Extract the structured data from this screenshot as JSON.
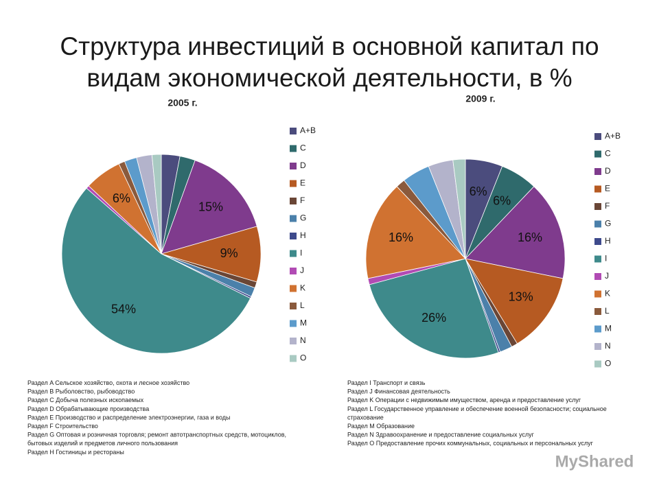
{
  "title_lines": [
    "Структура инвестиций в основной капитал по",
    "видам экономической деятельности, в %"
  ],
  "chart_data": [
    {
      "type": "pie",
      "title": "2005 г.",
      "categories": [
        "A+B",
        "C",
        "D",
        "E",
        "F",
        "G",
        "H",
        "I",
        "J",
        "K",
        "L",
        "M",
        "N",
        "O"
      ],
      "values": [
        3,
        2.5,
        15,
        9,
        1,
        1.5,
        0.3,
        54,
        0.5,
        6,
        1,
        2,
        2.5,
        1.5
      ],
      "value_labels": [
        null,
        null,
        "15%",
        "9%",
        null,
        null,
        null,
        "54%",
        null,
        "6%",
        null,
        null,
        null,
        null
      ],
      "colors": [
        "#4b4c7d",
        "#2f6a6c",
        "#7f3b8d",
        "#b65a22",
        "#6a4636",
        "#4b80aa",
        "#3e4a8c",
        "#3e8a8b",
        "#b14bb4",
        "#d07231",
        "#8a5a3c",
        "#5c9bcb",
        "#b3b3cb",
        "#a9cac2"
      ]
    },
    {
      "type": "pie",
      "title": "2009 г.",
      "categories": [
        "A+B",
        "C",
        "D",
        "E",
        "F",
        "G",
        "H",
        "I",
        "J",
        "K",
        "L",
        "M",
        "N",
        "O"
      ],
      "values": [
        6,
        6,
        16,
        13,
        1,
        2,
        0.3,
        26,
        1,
        16,
        1.5,
        4.5,
        4,
        2
      ],
      "value_labels": [
        "6%",
        "6%",
        "16%",
        "13%",
        null,
        null,
        null,
        "26%",
        null,
        "16%",
        null,
        null,
        null,
        null
      ],
      "colors": [
        "#4b4c7d",
        "#2f6a6c",
        "#7f3b8d",
        "#b65a22",
        "#6a4636",
        "#4b80aa",
        "#3e4a8c",
        "#3e8a8b",
        "#b14bb4",
        "#d07231",
        "#8a5a3c",
        "#5c9bcb",
        "#b3b3cb",
        "#a9cac2"
      ]
    }
  ],
  "notes_left": [
    "Раздел A Сельское хозяйство, охота и лесное хозяйство",
    "Раздел B Рыболовство, рыбоводство",
    "Раздел C Добыча полезных ископаемых",
    "Раздел D Обрабатывающие производства",
    "Раздел E Производство и распределение электроэнергии, газа и воды",
    "Раздел F Строительство",
    "Раздел G Оптовая и розничная торговля; ремонт автотранспортных средств, мотоциклов,",
    "бытовых изделий и предметов личного пользования",
    "Раздел H Гостиницы и рестораны"
  ],
  "notes_right": [
    "Раздел I Транспорт и связь",
    "Раздел J Финансовая деятельность",
    "Раздел K Операции с недвижимым имуществом, аренда и предоставление услуг",
    "Раздел L Государственное управление и обеспечение военной безопасности; социальное",
    "страхование",
    "Раздел M Образование",
    "Раздел N Здравоохранение и предоставление социальных услуг",
    "Раздел O Предоставление прочих коммунальных, социальных и персональных услуг"
  ],
  "watermark": "MyShared"
}
